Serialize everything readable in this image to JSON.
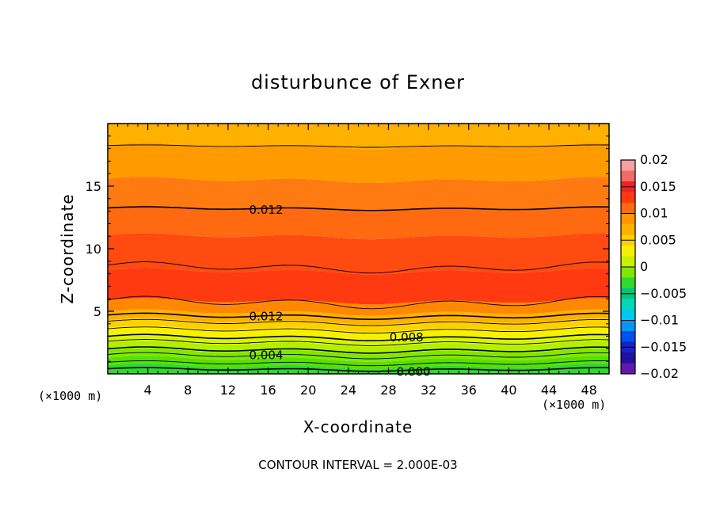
{
  "chart_data": {
    "type": "heatmap",
    "title": "disturbunce of Exner",
    "xlabel": "X-coordinate",
    "ylabel": "Z-coordinate",
    "x_unit_left": "(×1000 m)",
    "x_unit_right": "(×1000 m)",
    "xlim": [
      0,
      50
    ],
    "ylim": [
      0,
      20
    ],
    "x_ticks": [
      4,
      8,
      12,
      16,
      20,
      24,
      28,
      32,
      36,
      40,
      44,
      48
    ],
    "y_ticks": [
      5,
      10,
      15
    ],
    "colorbar": {
      "ticks": [
        "0.02",
        "0.015",
        "0.01",
        "0.005",
        "0",
        "−0.005",
        "−0.01",
        "−0.015",
        "−0.02"
      ],
      "colors": [
        "#f8a0a0",
        "#f06a6a",
        "#ee2222",
        "#ff3a10",
        "#ff6a10",
        "#ff9500",
        "#ffb000",
        "#ffd000",
        "#f4f000",
        "#c8f000",
        "#80e800",
        "#30d830",
        "#00c878",
        "#00d8b8",
        "#00c8f0",
        "#0098f0",
        "#0050f0",
        "#1820d0",
        "#2010a0",
        "#6018b0"
      ]
    },
    "field_bands": [
      {
        "from": 0.0,
        "to": 0.6,
        "color": "#30d830"
      },
      {
        "from": 0.6,
        "to": 1.2,
        "color": "#58e000"
      },
      {
        "from": 1.2,
        "to": 1.8,
        "color": "#80e800"
      },
      {
        "from": 1.8,
        "to": 2.4,
        "color": "#b0f000"
      },
      {
        "from": 2.4,
        "to": 3.0,
        "color": "#d8f400"
      },
      {
        "from": 3.0,
        "to": 3.6,
        "color": "#f8f000"
      },
      {
        "from": 3.6,
        "to": 4.2,
        "color": "#ffd000"
      },
      {
        "from": 4.2,
        "to": 4.9,
        "color": "#ffb000"
      },
      {
        "from": 4.9,
        "to": 5.8,
        "color": "#ff8800"
      },
      {
        "from": 5.8,
        "to": 8.2,
        "color": "#ff3a10"
      },
      {
        "from": 8.2,
        "to": 11.0,
        "color": "#ff4a10"
      },
      {
        "from": 11.0,
        "to": 13.2,
        "color": "#ff6a10"
      },
      {
        "from": 13.2,
        "to": 15.5,
        "color": "#ff7a10"
      },
      {
        "from": 15.5,
        "to": 18.2,
        "color": "#ff9a00"
      },
      {
        "from": 18.2,
        "to": 20.0,
        "color": "#ffb000"
      }
    ],
    "contour_lines": [
      {
        "level": "0.000",
        "z": 0.35,
        "amp": 0.15
      },
      {
        "level": "",
        "z": 0.85,
        "amp": 0.2
      },
      {
        "level": "",
        "z": 1.45,
        "amp": 0.25
      },
      {
        "level": "0.004",
        "z": 1.9,
        "amp": 0.25
      },
      {
        "level": "",
        "z": 2.5,
        "amp": 0.25
      },
      {
        "level": "0.008",
        "z": 2.9,
        "amp": 0.25
      },
      {
        "level": "",
        "z": 3.5,
        "amp": 0.25
      },
      {
        "level": "",
        "z": 4.1,
        "amp": 0.25
      },
      {
        "level": "0.012",
        "z": 4.6,
        "amp": 0.25
      },
      {
        "level": "",
        "z": 5.7,
        "amp": 0.5
      },
      {
        "level": "",
        "z": 8.5,
        "amp": 0.45
      },
      {
        "level": "0.012",
        "z": 13.2,
        "amp": 0.15
      },
      {
        "level": "",
        "z": 18.2,
        "amp": 0.1
      }
    ],
    "contour_labels": [
      {
        "text": "0.012",
        "x": 15.8,
        "z": 13.1
      },
      {
        "text": "0.012",
        "x": 15.8,
        "z": 4.6
      },
      {
        "text": "0.008",
        "x": 29.8,
        "z": 2.9
      },
      {
        "text": "0.004",
        "x": 15.8,
        "z": 1.5
      },
      {
        "text": "0.000",
        "x": 30.5,
        "z": 0.15
      }
    ],
    "caption": "CONTOUR INTERVAL = 2.000E-03"
  }
}
